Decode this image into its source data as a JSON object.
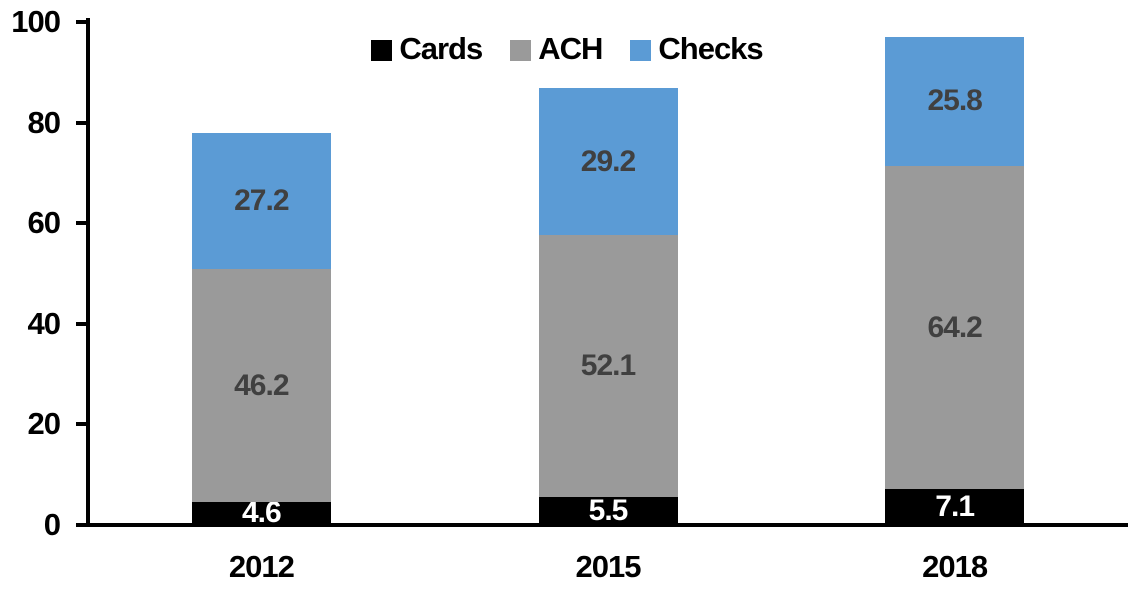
{
  "chart_data": {
    "type": "bar",
    "stacked": true,
    "title": "",
    "xlabel": "",
    "ylabel": "",
    "categories": [
      "2012",
      "2015",
      "2018"
    ],
    "series": [
      {
        "name": "Cards",
        "color": "#000000",
        "label_color": "#FFFFFF",
        "values": [
          4.6,
          5.5,
          7.1
        ]
      },
      {
        "name": "ACH",
        "color": "#9A9A9A",
        "label_color": "#404040",
        "values": [
          46.2,
          52.1,
          64.2
        ]
      },
      {
        "name": "Checks",
        "color": "#5B9BD5",
        "label_color": "#404040",
        "values": [
          27.2,
          29.2,
          25.8
        ]
      }
    ],
    "totals": [
      78.0,
      86.8,
      97.1
    ],
    "ylim": [
      0,
      100
    ],
    "y_ticks": [
      0,
      20,
      40,
      60,
      80,
      100
    ],
    "grid": false,
    "legend_position": "top-center",
    "axis_color": "#000000"
  }
}
